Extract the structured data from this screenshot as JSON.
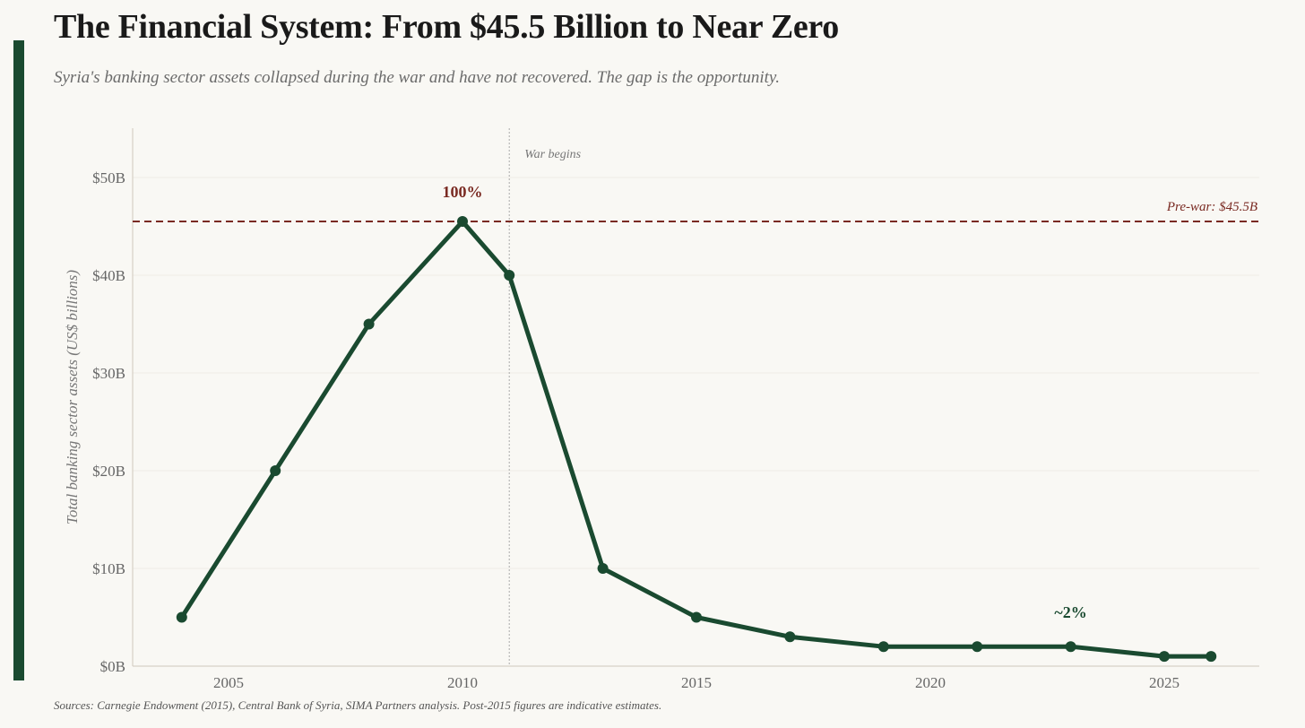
{
  "header": {
    "title": "The Financial System: From $45.5 Billion to Near Zero",
    "subtitle": "Syria's banking sector assets collapsed during the war and have not recovered. The gap is the opportunity."
  },
  "footer": {
    "source": "Sources: Carnegie Endowment (2015), Central Bank of Syria, SIMA Partners analysis. Post-2015 figures are indicative estimates."
  },
  "colors": {
    "line": "#1a4a30",
    "reference": "#7a2a22",
    "accent": "#1a4a30"
  },
  "chart_data": {
    "type": "line",
    "title": "The Financial System: From $45.5 Billion to Near Zero",
    "xlabel": "",
    "ylabel": "Total banking sector assets (US$ billions)",
    "xlim": [
      2003,
      2027
    ],
    "ylim": [
      0,
      55
    ],
    "x_ticks": [
      2005,
      2010,
      2015,
      2020,
      2025
    ],
    "y_ticks": [
      0,
      10,
      20,
      30,
      40,
      50
    ],
    "y_tick_labels": [
      "$0B",
      "$10B",
      "$20B",
      "$30B",
      "$40B",
      "$50B"
    ],
    "grid": true,
    "series": [
      {
        "name": "Banking sector assets",
        "x": [
          2004,
          2006,
          2008,
          2010,
          2011,
          2013,
          2015,
          2017,
          2019,
          2021,
          2023,
          2025,
          2026
        ],
        "values": [
          5,
          20,
          35,
          45.5,
          40,
          10,
          5,
          3,
          2,
          2,
          2,
          1,
          1
        ]
      }
    ],
    "reference_line": {
      "y": 45.5,
      "label": "Pre-war: $45.5B"
    },
    "vertical_line": {
      "x": 2011,
      "label": "War begins"
    },
    "annotations": [
      {
        "x": 2010,
        "y": 45.5,
        "text": "100%"
      },
      {
        "x": 2023,
        "y": 2,
        "text": "~2%"
      }
    ]
  }
}
